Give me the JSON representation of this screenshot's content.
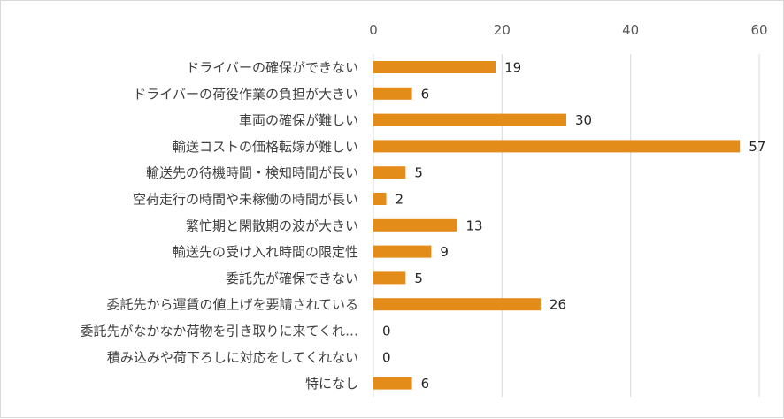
{
  "chart_data": {
    "type": "bar",
    "orientation": "horizontal",
    "title": "",
    "xlabel": "",
    "ylabel": "",
    "xlim": [
      0,
      60
    ],
    "x_ticks": [
      0,
      20,
      40,
      60
    ],
    "x_tick_labels": [
      "0",
      "20",
      "40",
      "60"
    ],
    "grid": true,
    "legend": "none",
    "bar_color": "#E48C1A",
    "categories": [
      "ドライバーの確保ができない",
      "ドライバーの荷役作業の負担が大きい",
      "車両の確保が難しい",
      "輸送コストの価格転嫁が難しい",
      "輸送先の待機時間・検知時間が長い",
      "空荷走行の時間や未稼働の時間が長い",
      "繁忙期と閑散期の波が大きい",
      "輸送先の受け入れ時間の限定性",
      "委託先が確保できない",
      "委託先から運賃の値上げを要請されている",
      "委託先がなかなか荷物を引き取りに来てくれ…",
      "積み込みや荷下ろしに対応をしてくれない",
      "特になし"
    ],
    "values": [
      19,
      6,
      30,
      57,
      5,
      2,
      13,
      9,
      5,
      26,
      0,
      0,
      6
    ],
    "data_labels": [
      "19",
      "6",
      "30",
      "57",
      "5",
      "2",
      "13",
      "9",
      "5",
      "26",
      "0",
      "0",
      "6"
    ]
  }
}
